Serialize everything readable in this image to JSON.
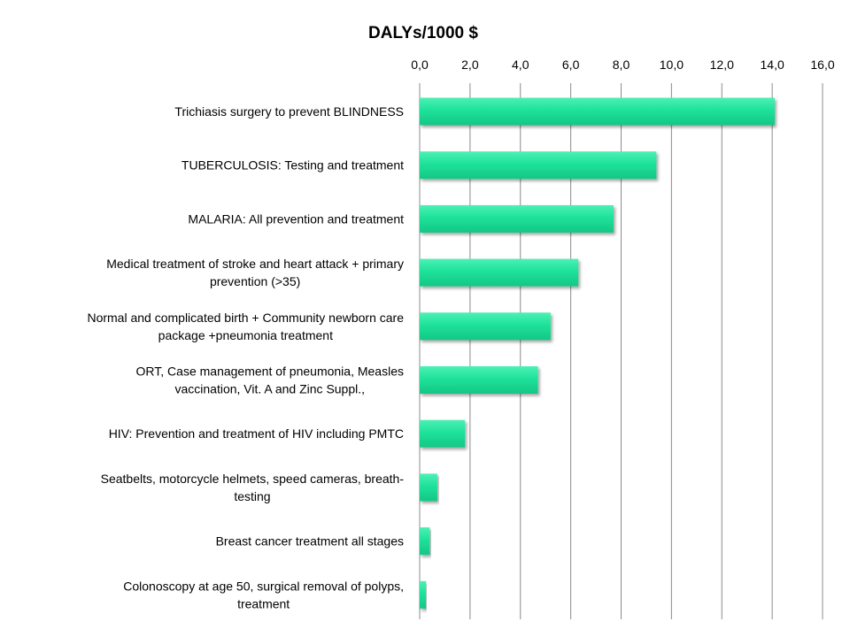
{
  "chart_data": {
    "type": "bar",
    "orientation": "horizontal",
    "title": "DALYs/1000  $",
    "xlabel": "",
    "ylabel": "",
    "xlim": [
      0,
      16
    ],
    "x_ticks": [
      "0,0",
      "2,0",
      "4,0",
      "6,0",
      "8,0",
      "10,0",
      "12,0",
      "14,0",
      "16,0"
    ],
    "x_tick_values": [
      0,
      2,
      4,
      6,
      8,
      10,
      12,
      14,
      16
    ],
    "x_axis_position": "top",
    "grid": true,
    "legend": "none",
    "bar_color": "#1ee29a",
    "categories": [
      [
        "Trichiasis surgery to prevent BLINDNESS"
      ],
      [
        "TUBERCULOSIS: Testing and treatment"
      ],
      [
        "MALARIA: All prevention and treatment"
      ],
      [
        "Medical treatment of stroke and heart attack + primary",
        "prevention (>35)"
      ],
      [
        "Normal and complicated birth + Community newborn care",
        "package +pneumonia treatment"
      ],
      [
        "ORT, Case management of pneumonia, Measles",
        "vaccination, Vit. A and Zinc Suppl.,"
      ],
      [
        "HIV: Prevention and treatment of HIV including PMTC"
      ],
      [
        "Seatbelts, motorcycle helmets, speed cameras, breath-",
        "testing"
      ],
      [
        "Breast cancer treatment all stages"
      ],
      [
        "Colonoscopy at age 50, surgical removal of polyps,",
        "treatment"
      ]
    ],
    "values": [
      14.1,
      9.4,
      7.7,
      6.3,
      5.2,
      4.7,
      1.8,
      0.7,
      0.4,
      0.25
    ]
  }
}
